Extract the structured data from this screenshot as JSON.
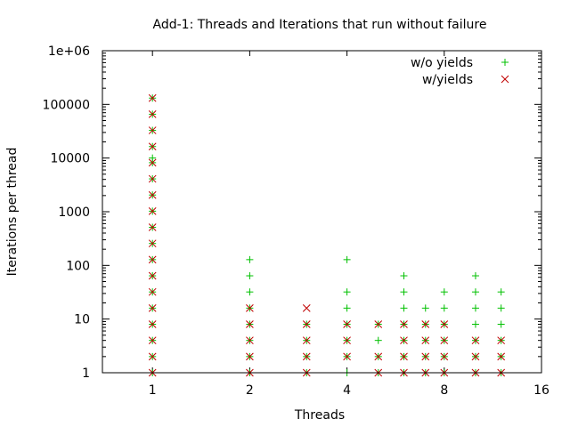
{
  "chart_data": {
    "type": "scatter",
    "title": "Add-1: Threads and Iterations that run without failure",
    "xlabel": "Threads",
    "ylabel": "Iterations per thread",
    "x_scale": "log",
    "y_scale": "log",
    "xlim": [
      0.7,
      16
    ],
    "ylim": [
      1,
      1000000
    ],
    "x_ticks": [
      1,
      2,
      4,
      8,
      16
    ],
    "x_tick_labels": [
      "1",
      "2",
      "4",
      "8",
      "16"
    ],
    "y_ticks": [
      1,
      10,
      100,
      1000,
      10000,
      100000,
      1000000
    ],
    "y_tick_labels": [
      "1",
      "10",
      "100",
      "1000",
      "10000",
      "100000",
      "1e+06"
    ],
    "grid": false,
    "legend_position": "top-right",
    "series": [
      {
        "name": "w/o yields",
        "marker": "+",
        "color": "#00c000",
        "points": [
          [
            1,
            1
          ],
          [
            1,
            2
          ],
          [
            1,
            4
          ],
          [
            1,
            8
          ],
          [
            1,
            16
          ],
          [
            1,
            32
          ],
          [
            1,
            64
          ],
          [
            1,
            128
          ],
          [
            1,
            256
          ],
          [
            1,
            512
          ],
          [
            1,
            1024
          ],
          [
            1,
            2048
          ],
          [
            1,
            4096
          ],
          [
            1,
            8192
          ],
          [
            1,
            10000
          ],
          [
            1,
            16384
          ],
          [
            1,
            32768
          ],
          [
            1,
            65536
          ],
          [
            1,
            131072
          ],
          [
            2,
            1
          ],
          [
            2,
            2
          ],
          [
            2,
            4
          ],
          [
            2,
            8
          ],
          [
            2,
            16
          ],
          [
            2,
            32
          ],
          [
            2,
            64
          ],
          [
            2,
            128
          ],
          [
            3,
            1
          ],
          [
            3,
            2
          ],
          [
            3,
            4
          ],
          [
            3,
            8
          ],
          [
            4,
            1
          ],
          [
            4,
            2
          ],
          [
            4,
            4
          ],
          [
            4,
            8
          ],
          [
            4,
            16
          ],
          [
            4,
            32
          ],
          [
            4,
            128
          ],
          [
            5,
            1
          ],
          [
            5,
            2
          ],
          [
            5,
            4
          ],
          [
            5,
            8
          ],
          [
            6,
            1
          ],
          [
            6,
            2
          ],
          [
            6,
            4
          ],
          [
            6,
            8
          ],
          [
            6,
            16
          ],
          [
            6,
            32
          ],
          [
            6,
            64
          ],
          [
            7,
            1
          ],
          [
            7,
            2
          ],
          [
            7,
            4
          ],
          [
            7,
            8
          ],
          [
            7,
            16
          ],
          [
            8,
            1
          ],
          [
            8,
            2
          ],
          [
            8,
            4
          ],
          [
            8,
            8
          ],
          [
            8,
            16
          ],
          [
            8,
            32
          ],
          [
            10,
            1
          ],
          [
            10,
            2
          ],
          [
            10,
            4
          ],
          [
            10,
            8
          ],
          [
            10,
            16
          ],
          [
            10,
            32
          ],
          [
            10,
            64
          ],
          [
            12,
            1
          ],
          [
            12,
            2
          ],
          [
            12,
            4
          ],
          [
            12,
            8
          ],
          [
            12,
            16
          ],
          [
            12,
            32
          ]
        ]
      },
      {
        "name": "w/yields",
        "marker": "x",
        "color": "#c00000",
        "points": [
          [
            1,
            1
          ],
          [
            1,
            2
          ],
          [
            1,
            4
          ],
          [
            1,
            8
          ],
          [
            1,
            16
          ],
          [
            1,
            32
          ],
          [
            1,
            64
          ],
          [
            1,
            128
          ],
          [
            1,
            256
          ],
          [
            1,
            512
          ],
          [
            1,
            1024
          ],
          [
            1,
            2048
          ],
          [
            1,
            4096
          ],
          [
            1,
            8192
          ],
          [
            1,
            16384
          ],
          [
            1,
            32768
          ],
          [
            1,
            65536
          ],
          [
            1,
            131072
          ],
          [
            2,
            1
          ],
          [
            2,
            2
          ],
          [
            2,
            4
          ],
          [
            2,
            8
          ],
          [
            2,
            16
          ],
          [
            3,
            1
          ],
          [
            3,
            2
          ],
          [
            3,
            4
          ],
          [
            3,
            8
          ],
          [
            3,
            16
          ],
          [
            4,
            2
          ],
          [
            4,
            4
          ],
          [
            4,
            8
          ],
          [
            5,
            1
          ],
          [
            5,
            2
          ],
          [
            5,
            8
          ],
          [
            6,
            1
          ],
          [
            6,
            2
          ],
          [
            6,
            4
          ],
          [
            6,
            8
          ],
          [
            7,
            1
          ],
          [
            7,
            2
          ],
          [
            7,
            4
          ],
          [
            7,
            8
          ],
          [
            8,
            1
          ],
          [
            8,
            2
          ],
          [
            8,
            4
          ],
          [
            8,
            8
          ],
          [
            10,
            1
          ],
          [
            10,
            2
          ],
          [
            10,
            4
          ],
          [
            12,
            1
          ],
          [
            12,
            2
          ],
          [
            12,
            4
          ]
        ]
      }
    ]
  }
}
